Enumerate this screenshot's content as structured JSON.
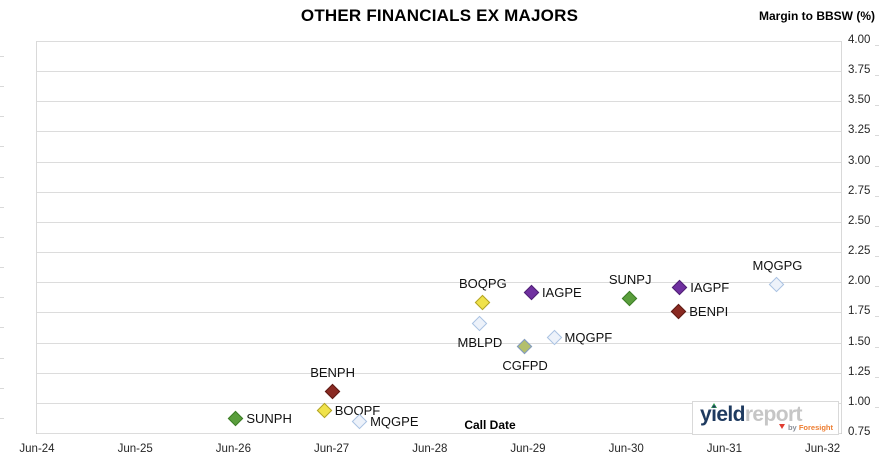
{
  "header": {
    "title": "OTHER FINANCIALS EX MAJORS",
    "y_axis_title": "Margin to BBSW (%)"
  },
  "chart_data": {
    "type": "scatter",
    "title": "OTHER FINANCIALS EX MAJORS",
    "xlabel": "Call Date",
    "ylabel": "Margin to BBSW (%)",
    "grid": true,
    "ylim": [
      0.75,
      4.0
    ],
    "y_tick_step": 0.25,
    "y_ticks": [
      "4.00",
      "3.75",
      "3.50",
      "3.25",
      "3.00",
      "2.75",
      "2.50",
      "2.25",
      "2.00",
      "1.75",
      "1.50",
      "1.25",
      "1.00",
      "0.75"
    ],
    "x_ticks": [
      "Jun-24",
      "Jun-25",
      "Jun-26",
      "Jun-27",
      "Jun-28",
      "Jun-29",
      "Jun-30",
      "Jun-31",
      "Jun-32"
    ],
    "points": [
      {
        "label": "SUNPH",
        "x_years": 2.02,
        "call_date_approx": "Jun-26",
        "margin": 0.87,
        "style": "green",
        "label_pos": "right"
      },
      {
        "label": "BOQPF",
        "x_years": 2.92,
        "call_date_approx": "May-27",
        "margin": 0.93,
        "style": "yellow",
        "label_pos": "right"
      },
      {
        "label": "BENPH",
        "x_years": 3.0,
        "call_date_approx": "Jun-27",
        "margin": 1.09,
        "style": "darkred",
        "label_pos": "above"
      },
      {
        "label": "MQGPE",
        "x_years": 3.28,
        "call_date_approx": "Sep-27",
        "margin": 0.84,
        "style": "lightblue",
        "label_pos": "right"
      },
      {
        "label": "MBLPD",
        "x_years": 4.5,
        "call_date_approx": "Dec-28",
        "margin": 1.65,
        "style": "lightblue",
        "label_pos": "below"
      },
      {
        "label": "BOQPG",
        "x_years": 4.53,
        "call_date_approx": "Dec-28",
        "margin": 1.83,
        "style": "yellow",
        "label_pos": "above"
      },
      {
        "label": "CGFPD",
        "x_years": 4.96,
        "call_date_approx": "Jun-29",
        "margin": 1.46,
        "style": "sage",
        "label_pos": "below"
      },
      {
        "label": "IAGPE",
        "x_years": 5.03,
        "call_date_approx": "Jun-29",
        "margin": 1.91,
        "style": "purple",
        "label_pos": "right"
      },
      {
        "label": "MQGPF",
        "x_years": 5.26,
        "call_date_approx": "Sep-29",
        "margin": 1.54,
        "style": "lightblue",
        "label_pos": "right"
      },
      {
        "label": "SUNPJ",
        "x_years": 6.03,
        "call_date_approx": "Jun-30",
        "margin": 1.86,
        "style": "green",
        "label_pos": "above"
      },
      {
        "label": "BENPI",
        "x_years": 6.53,
        "call_date_approx": "Dec-30",
        "margin": 1.75,
        "style": "darkred",
        "label_pos": "right"
      },
      {
        "label": "IAGPF",
        "x_years": 6.54,
        "call_date_approx": "Dec-30",
        "margin": 1.95,
        "style": "purple",
        "label_pos": "right"
      },
      {
        "label": "MQGPG",
        "x_years": 7.53,
        "call_date_approx": "Dec-31",
        "margin": 1.98,
        "style": "lightblue",
        "label_pos": "above"
      }
    ],
    "marker_styles": {
      "green": {
        "fill": "#5a9e3c",
        "border": "#3c7d27"
      },
      "yellow": {
        "fill": "#f0e24a",
        "border": "#b0a228"
      },
      "darkred": {
        "fill": "#8a2a22",
        "border": "#5e1c16"
      },
      "purple": {
        "fill": "#7030a0",
        "border": "#4f2173"
      },
      "lightblue": {
        "fill": "#edf2fa",
        "border": "#a9c2e2"
      },
      "sage": {
        "fill": "#b3bf6b",
        "border": "#8099c9"
      }
    },
    "colors": {
      "gridline": "#dcdcdc",
      "axis_line": "#c2c2c2",
      "tick_label": "#262626"
    }
  },
  "branding": {
    "logo_part1": "yield",
    "logo_part2": "report",
    "tagline_by": "by",
    "tagline_name": "Foresight"
  }
}
